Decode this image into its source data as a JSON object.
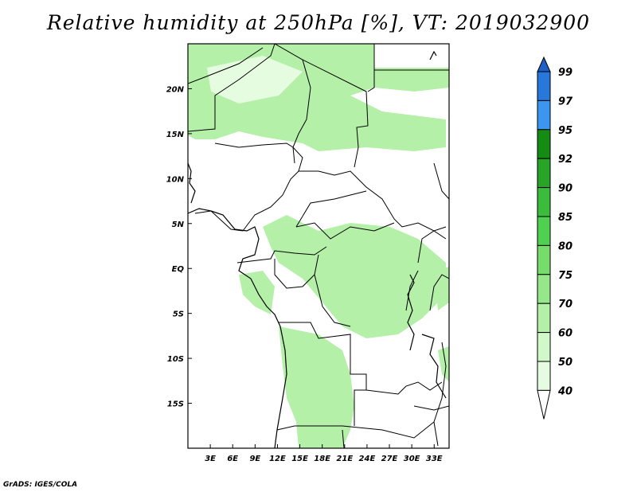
{
  "title": "Relative humidity at 250hPa [%], VT: 2019032900",
  "credit": "GrADS: IGES/COLA",
  "map": {
    "lat_labels": [
      "20N",
      "15N",
      "10N",
      "5N",
      "EQ",
      "5S",
      "10S",
      "15S"
    ],
    "lon_labels": [
      "3E",
      "6E",
      "9E",
      "12E",
      "15E",
      "18E",
      "21E",
      "24E",
      "27E",
      "30E",
      "33E"
    ],
    "lon_range": [
      0,
      35
    ],
    "lat_range": [
      -20,
      25
    ],
    "field_color": "#b4f0a8",
    "field_light_color": "#e6fce0"
  },
  "colorbar": {
    "labels": [
      "40",
      "50",
      "60",
      "70",
      "75",
      "80",
      "85",
      "90",
      "92",
      "95",
      "97",
      "99"
    ],
    "colors": [
      "#ffffff",
      "#e6fce0",
      "#d0f8c8",
      "#b4f0a8",
      "#96e68a",
      "#78dc6c",
      "#50d050",
      "#3cbc3c",
      "#28a428",
      "#148c14",
      "#3c96f0",
      "#2878dc",
      "#1e5fc8"
    ]
  }
}
